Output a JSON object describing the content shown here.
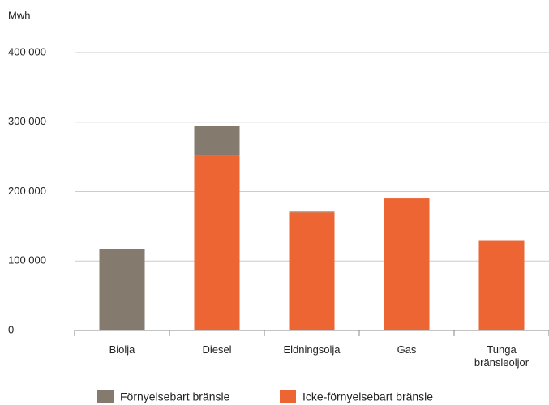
{
  "chart_data": {
    "type": "stacked_bar",
    "y_unit_label": "Mwh",
    "categories": [
      "Biolja",
      "Diesel",
      "Eldningsolja",
      "Gas",
      "Tunga bränsleoljor"
    ],
    "series": [
      {
        "name": "Förnyelsebart bränsle",
        "color": "#857a6e",
        "values": [
          117000,
          42000,
          1000,
          0,
          0
        ]
      },
      {
        "name": "Icke-förnyelsebart bränsle",
        "color": "#ec6532",
        "values": [
          0,
          253000,
          170000,
          190000,
          130000
        ]
      }
    ],
    "ylim": [
      0,
      400000
    ],
    "yticks": [
      {
        "value": 0,
        "label": "0"
      },
      {
        "value": 100000,
        "label": "100 000"
      },
      {
        "value": 200000,
        "label": "200 000"
      },
      {
        "value": 300000,
        "label": "300 000"
      },
      {
        "value": 400000,
        "label": "400 000"
      }
    ],
    "grid": true
  }
}
